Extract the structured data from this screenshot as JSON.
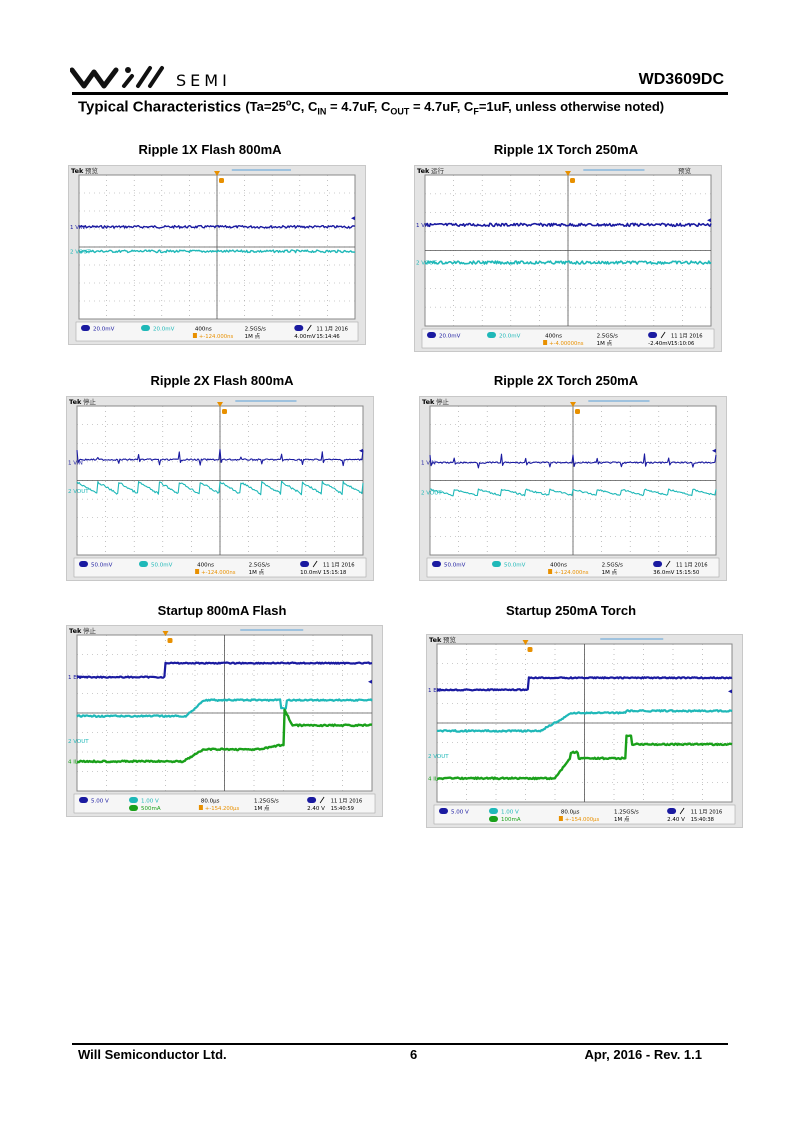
{
  "header": {
    "logo_text": "SEMI",
    "part_number": "WD3609DC",
    "section_title": "Typical Characteristics",
    "conditions": {
      "open": "(Ta=25",
      "deg": "o",
      "c_unit": "C, C",
      "cin_sub": "IN",
      "cin_val": " = 4.7uF, C",
      "cout_sub": "OUT",
      "cout_val": " = 4.7uF, C",
      "cf_sub": "F",
      "cf_val": "=1uF, unless otherwise noted)"
    }
  },
  "plots": [
    {
      "title": "Ripple 1X Flash 800mA",
      "brand": "Tek",
      "state": "预览",
      "extra": "",
      "ch_labels": [
        "1 VIN",
        "2 VOUT"
      ],
      "readout": [
        "20.0mV",
        "20.0mV",
        "400ns",
        "2.5GS/s",
        "1M 点",
        "4.00mV",
        "11 1月 2016",
        "15:14:46"
      ],
      "trig_offset": "+-124.000ns"
    },
    {
      "title": "Ripple 1X Torch 250mA",
      "brand": "Tek",
      "state": "运行",
      "extra": "预览",
      "ch_labels": [
        "1 VIN",
        "2 VOUT"
      ],
      "readout": [
        "20.0mV",
        "20.0mV",
        "400ns",
        "2.5GS/s",
        "1M 点",
        "-2.40mV",
        "11 1月 2016",
        "15:10:06"
      ],
      "trig_offset": "+-4.00000ns"
    },
    {
      "title": "Ripple 2X Flash 800mA",
      "brand": "Tek",
      "state": "停止",
      "extra": "",
      "ch_labels": [
        "1 VIN",
        "2 VOUT"
      ],
      "readout": [
        "50.0mV",
        "50.0mV",
        "400ns",
        "2.5GS/s",
        "1M 点",
        "10.0mV",
        "11 1月 2016",
        "15:15:18"
      ],
      "trig_offset": "+-124.000ns"
    },
    {
      "title": "Ripple 2X Torch 250mA",
      "brand": "Tek",
      "state": "停止",
      "extra": "",
      "ch_labels": [
        "1 VIN",
        "2 VOUT"
      ],
      "readout": [
        "50.0mV",
        "50.0mV",
        "400ns",
        "2.5GS/s",
        "1M 点",
        "36.0mV",
        "11 1月 2016",
        "15:15:50"
      ],
      "trig_offset": "+-124.000ns"
    },
    {
      "title": "Startup 800mA Flash",
      "brand": "Tek",
      "state": "停止",
      "extra": "",
      "ch_labels": [
        "1 EN",
        "2 VOUT",
        "4 IL"
      ],
      "readout": [
        "5.00 V",
        "1.00 V",
        "500mA",
        "80.0μs",
        "1.25GS/s",
        "1M 点",
        "2.40 V",
        "11 1月 2016",
        "15:40:59"
      ],
      "trig_offset": "+-154.200μs"
    },
    {
      "title": "Startup 250mA Torch",
      "brand": "Tek",
      "state": "预览",
      "extra": "",
      "ch_labels": [
        "1 EN",
        "2 VOUT",
        "4 IL"
      ],
      "readout": [
        "5.00 V",
        "1.00 V",
        "100mA",
        "80.0μs",
        "1.25GS/s",
        "1M 点",
        "2.40 V",
        "11 1月 2016",
        "15:40:38"
      ],
      "trig_offset": "+-154.000μs"
    }
  ],
  "footer": {
    "company": "Will Semiconductor Ltd.",
    "page": "6",
    "revision": "Apr, 2016 - Rev. 1.1"
  },
  "colors": {
    "ch1": "#1a1aa0",
    "ch2": "#1fb8b8",
    "ch4": "#1aa01a",
    "trigger": "#e89000",
    "grid": "#9a9a9a"
  }
}
